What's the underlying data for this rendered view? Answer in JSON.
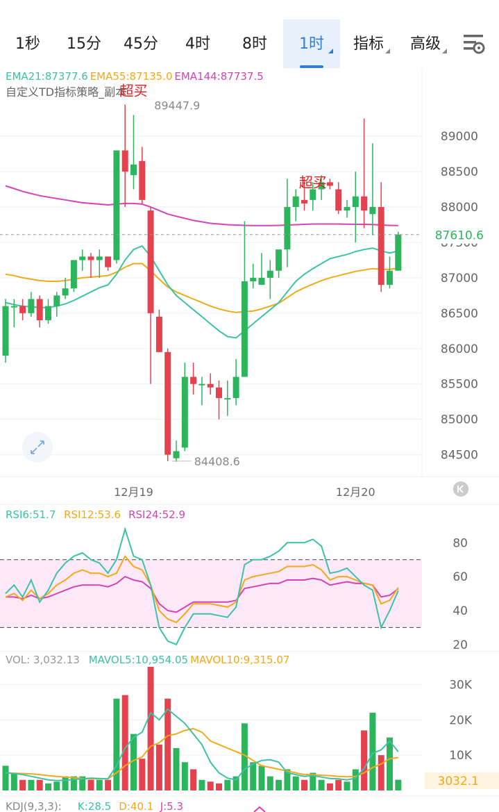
{
  "tabs": [
    {
      "label": "1秒",
      "active": false,
      "dropdown": false
    },
    {
      "label": "15分",
      "active": false,
      "dropdown": false
    },
    {
      "label": "45分",
      "active": false,
      "dropdown": false
    },
    {
      "label": "4时",
      "active": false,
      "dropdown": false
    },
    {
      "label": "8时",
      "active": false,
      "dropdown": false
    },
    {
      "label": "1时",
      "active": true,
      "dropdown": true
    },
    {
      "label": "指标",
      "active": false,
      "dropdown": true
    },
    {
      "label": "高级",
      "active": false,
      "dropdown": true
    }
  ],
  "settings_icon": "chart-settings-icon",
  "colors": {
    "up": "#2db55d",
    "down": "#e5424f",
    "ema21": "#3cc2a6",
    "ema55": "#f2a91a",
    "ema144": "#d542b8",
    "accent": "#2f7ed8"
  },
  "main": {
    "ema_legend": [
      {
        "text": "EMA21:87377.6",
        "color": "#3cc2a6"
      },
      {
        "text": "EMA55:87135.0",
        "color": "#f2a91a"
      },
      {
        "text": "EMA144:87737.5",
        "color": "#d542b8"
      }
    ],
    "strategy_label": "自定义TD指标策略_副本",
    "y_ticks": [
      "89000",
      "88500",
      "88000",
      "87500",
      "87000",
      "86500",
      "86000",
      "85500",
      "85000",
      "84500"
    ],
    "current_price": "87610.6",
    "high_label": "89447.9",
    "low_label": "84408.6",
    "overbought_labels": [
      "超买",
      "超买"
    ],
    "x_labels": [
      "12月19",
      "12月20"
    ]
  },
  "chart_data": {
    "type": "candlestick",
    "interval": "1时",
    "ylim": [
      84300,
      89600
    ],
    "candles": [
      [
        85900,
        86700,
        85800,
        86600
      ],
      [
        86600,
        86700,
        86300,
        86600
      ],
      [
        86600,
        86700,
        86400,
        86500
      ],
      [
        86500,
        86800,
        86450,
        86700
      ],
      [
        86700,
        86750,
        86300,
        86400
      ],
      [
        86400,
        86700,
        86350,
        86600
      ],
      [
        86600,
        86800,
        86450,
        86750
      ],
      [
        86750,
        87000,
        86700,
        86850
      ],
      [
        86850,
        87250,
        86800,
        87250
      ],
      [
        87250,
        87400,
        87100,
        87300
      ],
      [
        87300,
        87350,
        87000,
        87250
      ],
      [
        87250,
        87400,
        87000,
        87300
      ],
      [
        87300,
        87300,
        87100,
        87150
      ],
      [
        87250,
        88800,
        87200,
        88800
      ],
      [
        88800,
        89447.9,
        88000,
        88500
      ],
      [
        88450,
        89300,
        88250,
        88600
      ],
      [
        88650,
        88850,
        88050,
        88100
      ],
      [
        87950,
        88000,
        85500,
        86500
      ],
      [
        86450,
        86550,
        86000,
        85950
      ],
      [
        85950,
        86000,
        84408.6,
        84500
      ],
      [
        84450,
        84700,
        84400,
        84550
      ],
      [
        84600,
        85800,
        84550,
        85600
      ],
      [
        85600,
        85800,
        85350,
        85500
      ],
      [
        85500,
        85600,
        85200,
        85500
      ],
      [
        85500,
        85650,
        85350,
        85450
      ],
      [
        85450,
        85550,
        85000,
        85300
      ],
      [
        85300,
        85550,
        85050,
        85300
      ],
      [
        85300,
        85850,
        85200,
        85600
      ],
      [
        85600,
        87800,
        85600,
        86950
      ],
      [
        86950,
        87200,
        86850,
        87000
      ],
      [
        86900,
        87350,
        86900,
        87000
      ],
      [
        87000,
        87250,
        86700,
        87100
      ],
      [
        87100,
        87400,
        87000,
        87400
      ],
      [
        87400,
        88400,
        87150,
        88000
      ],
      [
        88000,
        88250,
        87800,
        88150
      ],
      [
        88100,
        88400,
        87950,
        88050
      ],
      [
        88100,
        88350,
        87950,
        88250
      ],
      [
        88250,
        88450,
        88100,
        88350
      ],
      [
        88350,
        88400,
        88250,
        88300
      ],
      [
        88250,
        88350,
        87900,
        87950
      ],
      [
        87950,
        88100,
        87850,
        88000
      ],
      [
        88000,
        88500,
        87500,
        88150
      ],
      [
        88150,
        89250,
        87700,
        87950
      ],
      [
        87900,
        88900,
        87600,
        88000
      ],
      [
        88000,
        88350,
        86800,
        86900
      ],
      [
        86900,
        87300,
        86850,
        87100
      ],
      [
        87100,
        87650,
        87100,
        87610.6
      ]
    ],
    "ema21": [
      86650,
      86620,
      86600,
      86590,
      86580,
      86580,
      86600,
      86630,
      86680,
      86740,
      86800,
      86860,
      86900,
      87050,
      87250,
      87400,
      87450,
      87300,
      87100,
      86900,
      86750,
      86650,
      86550,
      86450,
      86350,
      86250,
      86170,
      86150,
      86250,
      86350,
      86450,
      86550,
      86650,
      86800,
      86950,
      87050,
      87130,
      87200,
      87270,
      87300,
      87330,
      87370,
      87400,
      87420,
      87380,
      87350,
      87377.6
    ],
    "ema55": [
      87050,
      87030,
      87000,
      86980,
      86960,
      86950,
      86950,
      86960,
      86980,
      87000,
      87010,
      87020,
      87030,
      87080,
      87150,
      87200,
      87200,
      87100,
      86980,
      86870,
      86800,
      86750,
      86700,
      86650,
      86600,
      86560,
      86530,
      86510,
      86520,
      86530,
      86560,
      86600,
      86640,
      86720,
      86800,
      86860,
      86910,
      86960,
      87000,
      87030,
      87060,
      87090,
      87110,
      87130,
      87120,
      87120,
      87135
    ],
    "ema144": [
      88300,
      88260,
      88220,
      88190,
      88160,
      88140,
      88120,
      88100,
      88080,
      88060,
      88050,
      88040,
      88030,
      88040,
      88050,
      88050,
      88040,
      88000,
      87950,
      87900,
      87870,
      87840,
      87810,
      87790,
      87770,
      87760,
      87750,
      87745,
      87740,
      87738,
      87737,
      87738,
      87740,
      87745,
      87750,
      87755,
      87760,
      87760,
      87760,
      87760,
      87758,
      87756,
      87755,
      87752,
      87745,
      87740,
      87737.5
    ],
    "rsi": {
      "legend": [
        {
          "text": "RSI6:51.7",
          "color": "#3cc2a6"
        },
        {
          "text": "RSI12:53.6",
          "color": "#f2a91a"
        },
        {
          "text": "RSI24:52.9",
          "color": "#d542b8"
        }
      ],
      "y_ticks": [
        "80",
        "60",
        "40",
        "20"
      ],
      "bands": [
        70,
        30
      ],
      "ylim": [
        15,
        92
      ],
      "rsi6": [
        50,
        55,
        48,
        58,
        45,
        52,
        62,
        68,
        72,
        74,
        70,
        68,
        62,
        70,
        88,
        72,
        70,
        55,
        30,
        22,
        20,
        30,
        38,
        38,
        38,
        37,
        36,
        42,
        67,
        70,
        70,
        72,
        75,
        80,
        80,
        80,
        82,
        78,
        62,
        63,
        65,
        60,
        55,
        52,
        30,
        40,
        51.7
      ],
      "rsi12": [
        48,
        50,
        46,
        52,
        47,
        50,
        55,
        58,
        62,
        64,
        62,
        62,
        60,
        62,
        72,
        66,
        64,
        55,
        40,
        35,
        33,
        38,
        44,
        44,
        44,
        43,
        42,
        45,
        58,
        60,
        61,
        62,
        63,
        66,
        66,
        66,
        67,
        64,
        58,
        60,
        60,
        58,
        56,
        55,
        44,
        46,
        53.6
      ],
      "rsi24": [
        48,
        48,
        47,
        49,
        47,
        48,
        50,
        52,
        54,
        55,
        55,
        55,
        54,
        56,
        60,
        58,
        57,
        53,
        44,
        40,
        39,
        42,
        45,
        45,
        45,
        45,
        45,
        46,
        53,
        54,
        55,
        56,
        56,
        58,
        58,
        58,
        59,
        58,
        55,
        56,
        57,
        56,
        56,
        55,
        48,
        49,
        52.9
      ]
    },
    "volume": {
      "legend": [
        {
          "text": "VOL: 3,032.13",
          "color": "#999999"
        },
        {
          "text": "MAVOL5:10,954.05",
          "color": "#3cc2a6"
        },
        {
          "text": "MAVOL10:9,315.07",
          "color": "#f2a91a"
        }
      ],
      "y_ticks": [
        "30K",
        "20K",
        "10K"
      ],
      "current": "3032.1",
      "ylim": [
        0,
        35000
      ],
      "values": [
        7000,
        5000,
        3000,
        3000,
        3000,
        2000,
        2500,
        4000,
        4000,
        4000,
        3000,
        3000,
        3000,
        26000,
        27000,
        16000,
        9000,
        35000,
        13000,
        26000,
        12000,
        8000,
        6000,
        3000,
        2500,
        2000,
        3000,
        4000,
        19000,
        8000,
        7000,
        4000,
        3000,
        6000,
        4000,
        3000,
        5000,
        3000,
        2000,
        3000,
        2500,
        6000,
        17000,
        22000,
        10000,
        15000,
        3032.13
      ],
      "mavol5": [
        5000,
        4800,
        4500,
        4000,
        3500,
        3000,
        2800,
        2900,
        3100,
        3300,
        3500,
        3400,
        3300,
        7000,
        12000,
        15000,
        16500,
        22000,
        20000,
        23000,
        21000,
        19000,
        16000,
        13000,
        8000,
        5000,
        3500,
        3000,
        6000,
        7500,
        8500,
        8700,
        8000,
        5000,
        4500,
        4000,
        4200,
        3800,
        3400,
        3300,
        3000,
        3500,
        6200,
        10500,
        11500,
        14000,
        10954.05
      ],
      "mavol10": [
        5000,
        4900,
        4800,
        4700,
        4500,
        4200,
        4000,
        3800,
        3600,
        3400,
        3300,
        3300,
        3300,
        5000,
        7000,
        8500,
        9500,
        12500,
        13500,
        15500,
        16000,
        17000,
        17500,
        16500,
        14000,
        13000,
        12000,
        11000,
        10000,
        8500,
        7000,
        6500,
        6000,
        5500,
        5000,
        4500,
        4500,
        4300,
        4200,
        4000,
        3900,
        4000,
        5000,
        6500,
        7500,
        9000,
        9315.07
      ]
    },
    "kdj": {
      "label": "KDJ(9,3,3):",
      "k": "K:28.5",
      "d": "D:40.1",
      "j": "J:5.3"
    }
  }
}
